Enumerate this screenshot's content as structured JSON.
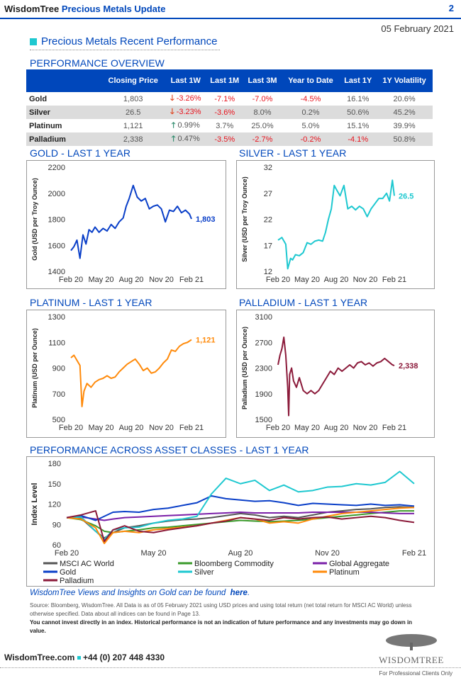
{
  "header": {
    "brand": "WisdomTree",
    "title": "Precious Metals Update",
    "page": "2",
    "date": "05 February 2021"
  },
  "section_title": "Precious Metals Recent Performance",
  "overview": {
    "title": "PERFORMANCE OVERVIEW",
    "columns": [
      "",
      "Closing Price",
      "Last 1W",
      "Last 1M",
      "Last 3M",
      "Year to Date",
      "Last 1Y",
      "1Y Volatility"
    ],
    "rows": [
      {
        "name": "Gold",
        "price": "1,803",
        "w": "-3.26%",
        "w_dir": "down",
        "m": "-7.1%",
        "m3": "-7.0%",
        "ytd": "-4.5%",
        "y": "16.1%",
        "vol": "20.6%"
      },
      {
        "name": "Silver",
        "price": "26.5",
        "w": "-3.23%",
        "w_dir": "down",
        "m": "-3.6%",
        "m3": "8.0%",
        "ytd": "0.2%",
        "y": "50.6%",
        "vol": "45.2%"
      },
      {
        "name": "Platinum",
        "price": "1,121",
        "w": "0.99%",
        "w_dir": "up",
        "m": "3.7%",
        "m3": "25.0%",
        "ytd": "5.0%",
        "y": "15.1%",
        "vol": "39.9%"
      },
      {
        "name": "Palladium",
        "price": "2,338",
        "w": "0.47%",
        "w_dir": "up",
        "m": "-3.5%",
        "m3": "-2.7%",
        "ytd": "-0.2%",
        "y": "-4.1%",
        "vol": "50.8%"
      }
    ]
  },
  "chart_data": [
    {
      "id": "gold",
      "type": "line",
      "title": "GOLD - LAST 1 YEAR",
      "ylabel": "Gold  (USD per Troy Ounce)",
      "ylim": [
        1400,
        2200
      ],
      "yticks": [
        "1400",
        "1600",
        "1800",
        "2000",
        "2200"
      ],
      "xticks": [
        "Feb 20",
        "May 20",
        "Aug 20",
        "Nov 20",
        "Feb 21"
      ],
      "end_label": "1,803",
      "color": "#0a3fc8",
      "series": [
        {
          "name": "Gold",
          "x": [
            0,
            0.3,
            0.6,
            0.9,
            1.2,
            1.5,
            1.8,
            2.1,
            2.4,
            2.8,
            3.2,
            3.6,
            4.0,
            4.4,
            4.8,
            5.2,
            5.5,
            5.8,
            6.2,
            6.6,
            7.0,
            7.4,
            7.8,
            8.2,
            8.6,
            9.0,
            9.4,
            9.8,
            10.2,
            10.6,
            11.0,
            11.4,
            11.8,
            12.0
          ],
          "y": [
            1560,
            1590,
            1640,
            1500,
            1680,
            1610,
            1720,
            1700,
            1740,
            1700,
            1730,
            1710,
            1760,
            1730,
            1780,
            1810,
            1900,
            1960,
            2060,
            1970,
            1940,
            1960,
            1880,
            1900,
            1910,
            1880,
            1780,
            1870,
            1860,
            1900,
            1850,
            1870,
            1840,
            1803
          ]
        }
      ]
    },
    {
      "id": "silver",
      "type": "line",
      "title": "SILVER - LAST 1 YEAR",
      "ylabel": "Silver (USD per Troy Ounce)",
      "ylim": [
        12,
        32
      ],
      "yticks": [
        "12",
        "17",
        "22",
        "27",
        "32"
      ],
      "xticks": [
        "Feb 20",
        "May 20",
        "Aug 20",
        "Nov 20",
        "Feb 21"
      ],
      "end_label": "26.5",
      "color": "#1ec8d0",
      "series": [
        {
          "name": "Silver",
          "x": [
            0,
            0.4,
            0.8,
            1.0,
            1.3,
            1.5,
            1.8,
            2.2,
            2.6,
            3.0,
            3.4,
            3.8,
            4.2,
            4.6,
            4.9,
            5.2,
            5.5,
            5.8,
            6.0,
            6.4,
            6.8,
            7.2,
            7.6,
            8.0,
            8.4,
            8.8,
            9.2,
            9.6,
            10.0,
            10.4,
            10.8,
            11.2,
            11.5,
            11.8,
            12.0
          ],
          "y": [
            18,
            18.5,
            17.2,
            12.5,
            14.5,
            14.2,
            15.2,
            15,
            15.6,
            17.5,
            17.2,
            17.8,
            18,
            17.8,
            19.5,
            22,
            24,
            28.5,
            27.8,
            26.5,
            28.5,
            24,
            24.5,
            23.8,
            24.5,
            24,
            22.5,
            24,
            25,
            26,
            26,
            27,
            25.5,
            29.5,
            26.5
          ]
        }
      ]
    },
    {
      "id": "platinum",
      "type": "line",
      "title": "PLATINUM - LAST 1 YEAR",
      "ylabel": "Platinum  (USD per Ounce)",
      "ylim": [
        500,
        1300
      ],
      "yticks": [
        "500",
        "700",
        "900",
        "1100",
        "1300"
      ],
      "xticks": [
        "Feb 20",
        "May 20",
        "Aug 20",
        "Nov 20",
        "Feb 21"
      ],
      "end_label": "1,121",
      "color": "#ff8a0a",
      "series": [
        {
          "name": "Platinum",
          "x": [
            0,
            0.3,
            0.6,
            0.9,
            1.1,
            1.3,
            1.6,
            2.0,
            2.4,
            2.8,
            3.2,
            3.6,
            4.0,
            4.4,
            4.8,
            5.2,
            5.6,
            6.0,
            6.4,
            6.8,
            7.2,
            7.6,
            8.0,
            8.4,
            8.8,
            9.2,
            9.6,
            10.0,
            10.4,
            10.8,
            11.2,
            11.6,
            12.0
          ],
          "y": [
            980,
            1000,
            960,
            920,
            600,
            720,
            780,
            750,
            790,
            810,
            820,
            840,
            820,
            830,
            870,
            900,
            930,
            950,
            970,
            930,
            880,
            900,
            860,
            870,
            900,
            940,
            970,
            1040,
            1030,
            1070,
            1090,
            1100,
            1121
          ]
        }
      ]
    },
    {
      "id": "palladium",
      "type": "line",
      "title": "PALLADIUM - LAST 1 YEAR",
      "ylabel": "Palladium  (USD per Ounce)",
      "ylim": [
        1500,
        3100
      ],
      "yticks": [
        "1500",
        "1900",
        "2300",
        "2700",
        "3100"
      ],
      "xticks": [
        "Feb 20",
        "May 20",
        "Aug 20",
        "Nov 20",
        "Feb 21"
      ],
      "end_label": "2,338",
      "color": "#8b1a3a",
      "series": [
        {
          "name": "Palladium",
          "x": [
            0,
            0.2,
            0.4,
            0.6,
            0.8,
            1.0,
            1.1,
            1.2,
            1.4,
            1.6,
            1.9,
            2.2,
            2.6,
            3.0,
            3.4,
            3.8,
            4.2,
            4.6,
            5.0,
            5.4,
            5.8,
            6.2,
            6.6,
            7.0,
            7.4,
            7.8,
            8.2,
            8.6,
            9.0,
            9.4,
            9.8,
            10.2,
            10.6,
            11.0,
            11.4,
            11.8,
            12.0
          ],
          "y": [
            2350,
            2500,
            2600,
            2780,
            2500,
            2000,
            1560,
            2200,
            2300,
            2100,
            2000,
            2150,
            1950,
            1900,
            1950,
            1900,
            1950,
            2050,
            2150,
            2250,
            2200,
            2300,
            2250,
            2300,
            2350,
            2300,
            2380,
            2400,
            2350,
            2380,
            2330,
            2380,
            2400,
            2450,
            2400,
            2350,
            2338
          ]
        }
      ]
    },
    {
      "id": "assets",
      "type": "line",
      "title": "PERFORMANCE ACROSS ASSET CLASSES - LAST 1 YEAR",
      "ylabel": "Index Level",
      "ylim": [
        60,
        180
      ],
      "yticks": [
        "60",
        "90",
        "120",
        "150",
        "180"
      ],
      "xticks": [
        "Feb 20",
        "May 20",
        "Aug 20",
        "Nov 20",
        "Feb 21"
      ],
      "x": [
        0,
        0.5,
        1.0,
        1.3,
        1.6,
        2.0,
        2.5,
        3.0,
        3.5,
        4.0,
        4.5,
        5.0,
        5.5,
        6.0,
        6.5,
        7.0,
        7.5,
        8.0,
        8.5,
        9.0,
        9.5,
        10.0,
        10.5,
        11.0,
        11.5,
        12.0
      ],
      "series": [
        {
          "name": "MSCI AC World",
          "color": "#555555",
          "y": [
            100,
            99,
            80,
            70,
            78,
            85,
            88,
            92,
            95,
            97,
            98,
            100,
            103,
            106,
            104,
            100,
            102,
            100,
            104,
            108,
            110,
            112,
            113,
            115,
            116,
            115
          ]
        },
        {
          "name": "Bloomberg Commodity",
          "color": "#3a9a2a",
          "y": [
            100,
            97,
            88,
            80,
            78,
            80,
            82,
            85,
            86,
            88,
            90,
            92,
            94,
            96,
            95,
            94,
            95,
            96,
            98,
            100,
            102,
            104,
            106,
            108,
            110,
            110
          ]
        },
        {
          "name": "Global Aggregate",
          "color": "#7a1fa8",
          "y": [
            100,
            101,
            98,
            96,
            98,
            100,
            101,
            102,
            103,
            104,
            105,
            106,
            107,
            108,
            107,
            107,
            107,
            107,
            108,
            108,
            108,
            108,
            108,
            107,
            106,
            106
          ]
        },
        {
          "name": "Gold",
          "color": "#0a3fc8",
          "y": [
            100,
            103,
            96,
            102,
            108,
            109,
            108,
            112,
            114,
            118,
            122,
            132,
            128,
            126,
            124,
            125,
            122,
            118,
            121,
            120,
            119,
            118,
            120,
            118,
            119,
            117
          ]
        },
        {
          "name": "Silver",
          "color": "#1ec8d0",
          "y": [
            100,
            101,
            80,
            68,
            82,
            85,
            86,
            92,
            96,
            98,
            102,
            135,
            158,
            150,
            155,
            140,
            148,
            138,
            140,
            145,
            146,
            150,
            148,
            152,
            168,
            150
          ]
        },
        {
          "name": "Platinum",
          "color": "#ff8a0a",
          "y": [
            100,
            98,
            85,
            62,
            78,
            80,
            78,
            82,
            84,
            86,
            88,
            92,
            96,
            100,
            98,
            92,
            94,
            92,
            98,
            102,
            106,
            108,
            110,
            112,
            114,
            115
          ]
        },
        {
          "name": "Palladium",
          "color": "#8b1a3a",
          "y": [
            100,
            104,
            110,
            65,
            82,
            88,
            80,
            78,
            82,
            85,
            88,
            92,
            95,
            100,
            98,
            96,
            100,
            98,
            100,
            101,
            98,
            100,
            102,
            100,
            96,
            93
          ]
        }
      ]
    }
  ],
  "footer": {
    "insights_text": "WisdomTree Views and Insights on Gold can be found",
    "insights_link": "here",
    "source": "Source: Bloomberg, WisdomTree. All Data is as of 05 February 2021 using USD prices and using total return (net total return for MSCI AC World) unless otherwise specified. Data about all indices can be found in Page 13.",
    "warning": "You cannot invest directly in an index. Historical performance is not an indication of future performance and any investments may go down in value.",
    "website": "WisdomTree.com",
    "phone": "+44 (0) 207 448 4330",
    "logo_text": "WISDOMTREE",
    "disclaimer": "For Professional Clients Only"
  }
}
